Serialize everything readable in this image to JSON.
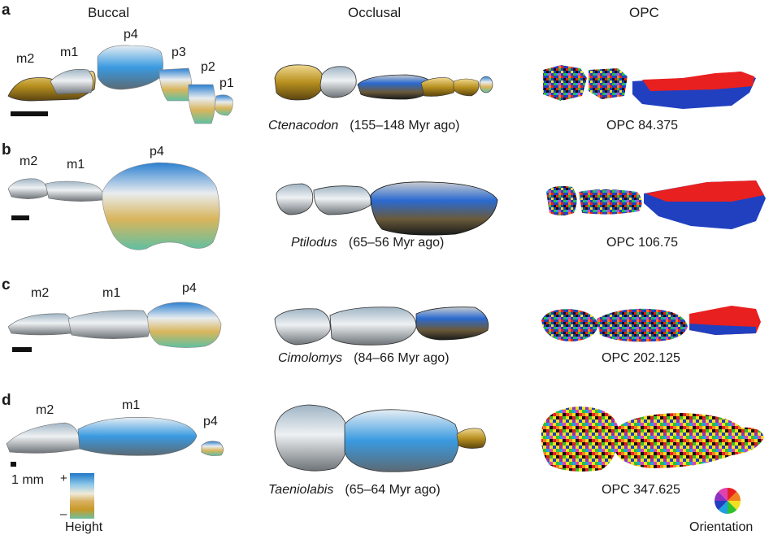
{
  "columns": {
    "buccal": "Buccal",
    "occlusal": "Occlusal",
    "opc": "OPC"
  },
  "rows": [
    {
      "label": "a",
      "genus": "Ctenacodon",
      "age": "(155–148 Myr ago)",
      "opc": "OPC 84.375",
      "teeth": [
        "m2",
        "m1",
        "p4",
        "p3",
        "p2",
        "p1"
      ]
    },
    {
      "label": "b",
      "genus": "Ptilodus",
      "age": "(65–56 Myr ago)",
      "opc": "OPC 106.75",
      "teeth": [
        "m2",
        "m1",
        "p4"
      ]
    },
    {
      "label": "c",
      "genus": "Cimolomys",
      "age": "(84–66 Myr ago)",
      "opc": "OPC 202.125",
      "teeth": [
        "m2",
        "m1",
        "p4"
      ]
    },
    {
      "label": "d",
      "genus": "Taeniolabis",
      "age": "(65–64 Myr ago)",
      "opc": "OPC 347.625",
      "teeth": [
        "m2",
        "m1",
        "p4"
      ]
    }
  ],
  "legend": {
    "scale": "1 mm",
    "height_label": "Height",
    "plus": "+",
    "minus": "–",
    "orientation_label": "Orientation"
  },
  "colors": {
    "height_gradient": [
      "#1e78c8",
      "#8ec8e8",
      "#f0ead8",
      "#d8b060",
      "#c89a28",
      "#6cc0a0"
    ],
    "orientation_wheel": [
      "#e82020",
      "#f08020",
      "#f0e020",
      "#30c030",
      "#20a0e0",
      "#2040c0",
      "#9030c0",
      "#e040b0"
    ]
  }
}
